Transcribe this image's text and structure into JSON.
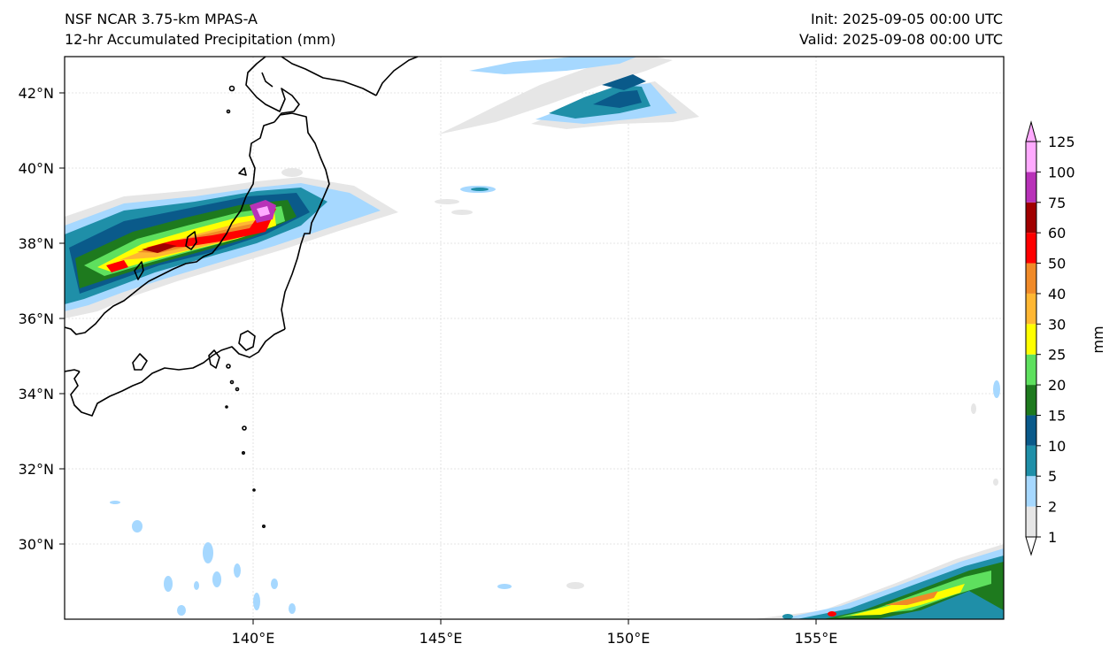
{
  "header": {
    "left_line1": "NSF NCAR 3.75-km MPAS-A",
    "left_line2": "12-hr Accumulated Precipitation (mm)",
    "right_line1": "Init: 2025-09-05 00:00 UTC",
    "right_line2": "Valid: 2025-09-08 00:00 UTC"
  },
  "map": {
    "lat_ticks": [
      "42°N",
      "40°N",
      "38°N",
      "36°N",
      "34°N",
      "32°N",
      "30°N"
    ],
    "lon_ticks": [
      "140°E",
      "145°E",
      "150°E",
      "155°E"
    ]
  },
  "colorbar": {
    "unit_label": "mm",
    "levels": [
      "1",
      "2",
      "5",
      "10",
      "15",
      "20",
      "25",
      "30",
      "40",
      "50",
      "60",
      "75",
      "100",
      "125"
    ],
    "colors": [
      "#e6e6e6",
      "#a6d8ff",
      "#1f8fa8",
      "#0a5a8a",
      "#1e7a1e",
      "#5ee05e",
      "#ffff00",
      "#ffb733",
      "#f08a28",
      "#ff0000",
      "#a00000",
      "#b832b8",
      "#ffaaff"
    ]
  }
}
